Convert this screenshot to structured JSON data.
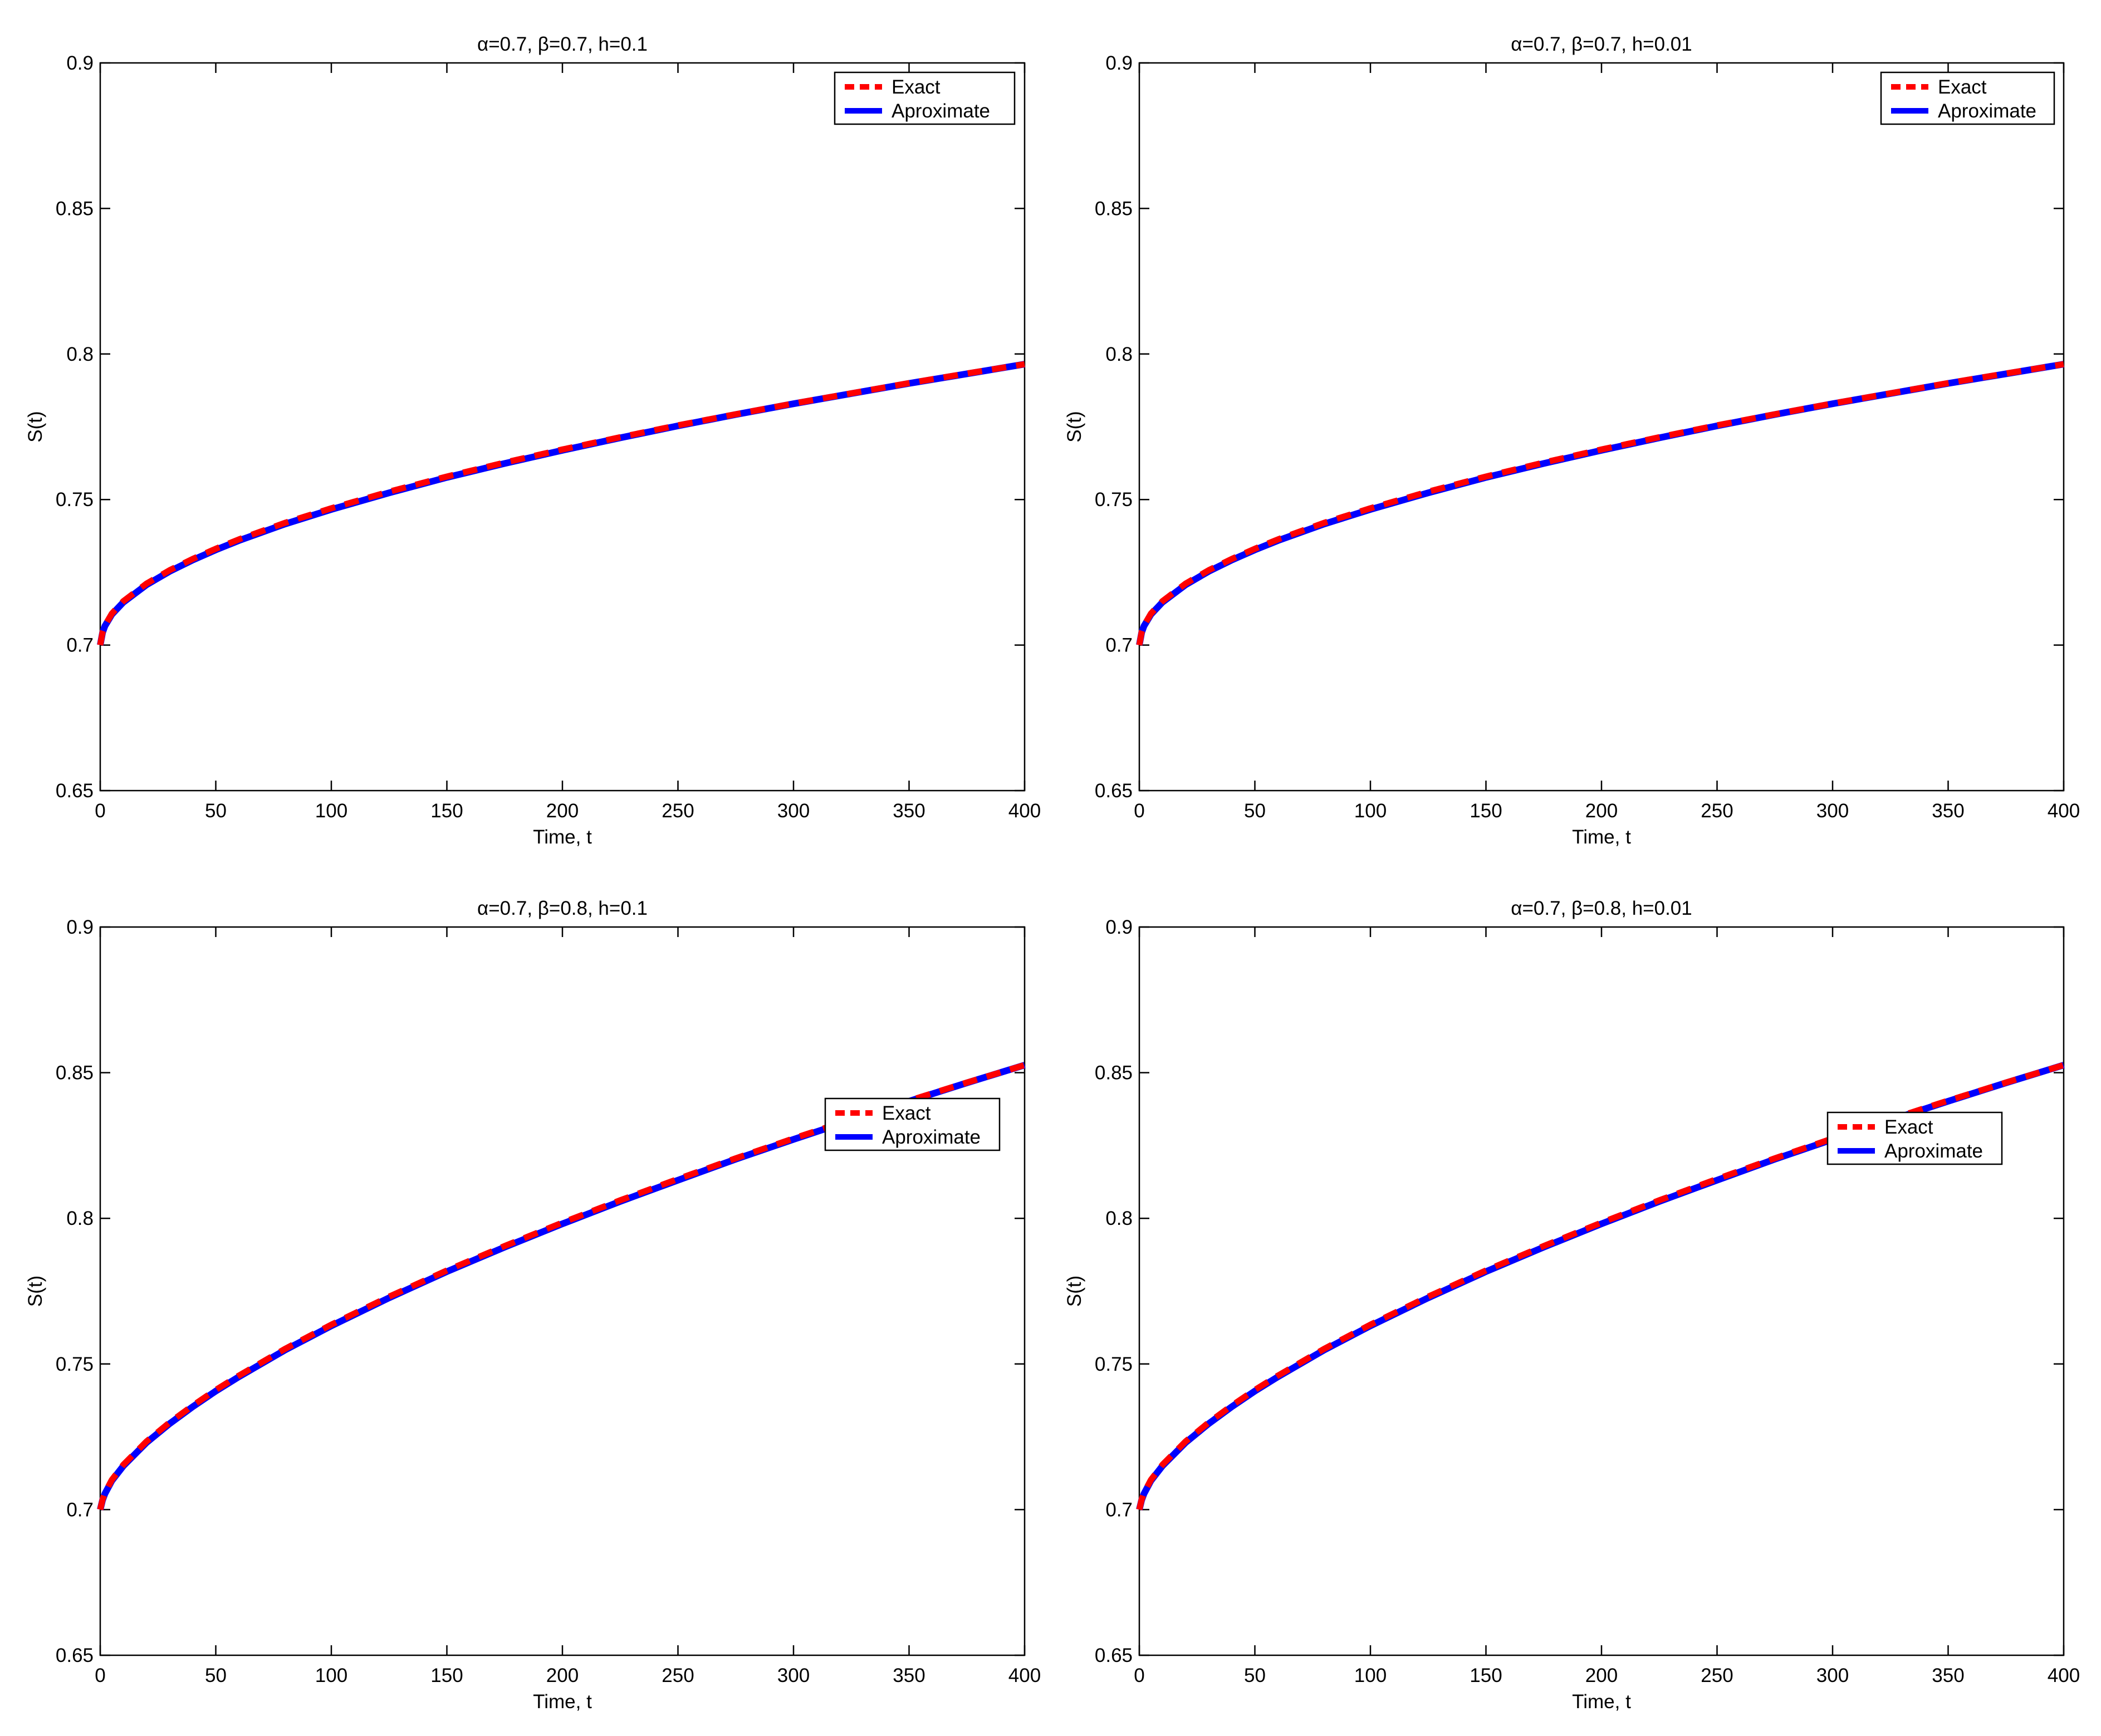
{
  "colors": {
    "exact": "#ff0000",
    "approximate": "#0000ff",
    "axes": "#000000",
    "background": "#ffffff"
  },
  "chart_data": [
    {
      "type": "line",
      "title": "α=0.7, β=0.7, h=0.1",
      "xlabel": "Time, t",
      "ylabel": "S(t)",
      "xlim": [
        0,
        400
      ],
      "ylim": [
        0.65,
        0.9
      ],
      "xticks": [
        "0",
        "50",
        "100",
        "150",
        "200",
        "250",
        "300",
        "350",
        "400"
      ],
      "yticks": [
        "0.65",
        "0.7",
        "0.75",
        "0.8",
        "0.85",
        "0.9"
      ],
      "grid": false,
      "legend_position": "top-right",
      "x": [
        0,
        1,
        2,
        5,
        10,
        20,
        30,
        40,
        50,
        60,
        80,
        100,
        125,
        150,
        175,
        200,
        225,
        250,
        275,
        300,
        325,
        350,
        375,
        400
      ],
      "series": [
        {
          "name": "Exact",
          "style": "dashed",
          "values": [
            0.7,
            0.7045,
            0.7067,
            0.7108,
            0.7151,
            0.7211,
            0.7257,
            0.7296,
            0.7331,
            0.7363,
            0.742,
            0.747,
            0.7527,
            0.7579,
            0.7627,
            0.7672,
            0.7714,
            0.7755,
            0.7793,
            0.783,
            0.7865,
            0.79,
            0.7933,
            0.7965
          ]
        },
        {
          "name": "Aproximate",
          "style": "solid",
          "values": [
            0.7,
            0.7043,
            0.7065,
            0.7105,
            0.7147,
            0.7207,
            0.7253,
            0.7292,
            0.7327,
            0.7359,
            0.7416,
            0.7466,
            0.7523,
            0.7576,
            0.7624,
            0.7669,
            0.7712,
            0.7753,
            0.7792,
            0.7829,
            0.7864,
            0.7899,
            0.7932,
            0.7965
          ]
        }
      ]
    },
    {
      "type": "line",
      "title": "α=0.7, β=0.7, h=0.01",
      "xlabel": "Time, t",
      "ylabel": "S(t)",
      "xlim": [
        0,
        400
      ],
      "ylim": [
        0.65,
        0.9
      ],
      "xticks": [
        "0",
        "50",
        "100",
        "150",
        "200",
        "250",
        "300",
        "350",
        "400"
      ],
      "yticks": [
        "0.65",
        "0.7",
        "0.75",
        "0.8",
        "0.85",
        "0.9"
      ],
      "grid": false,
      "legend_position": "top-right",
      "x": [
        0,
        1,
        2,
        5,
        10,
        20,
        30,
        40,
        50,
        60,
        80,
        100,
        125,
        150,
        175,
        200,
        225,
        250,
        275,
        300,
        325,
        350,
        375,
        400
      ],
      "series": [
        {
          "name": "Exact",
          "style": "dashed",
          "values": [
            0.7,
            0.7045,
            0.7067,
            0.7108,
            0.7151,
            0.7211,
            0.7257,
            0.7296,
            0.7331,
            0.7363,
            0.742,
            0.747,
            0.7527,
            0.7579,
            0.7627,
            0.7672,
            0.7714,
            0.7755,
            0.7793,
            0.783,
            0.7865,
            0.79,
            0.7933,
            0.7965
          ]
        },
        {
          "name": "Aproximate",
          "style": "solid",
          "values": [
            0.7,
            0.7043,
            0.7065,
            0.7105,
            0.7147,
            0.7207,
            0.7253,
            0.7292,
            0.7327,
            0.7359,
            0.7416,
            0.7466,
            0.7523,
            0.7576,
            0.7624,
            0.7669,
            0.7712,
            0.7753,
            0.7792,
            0.7829,
            0.7864,
            0.7899,
            0.7932,
            0.7965
          ]
        }
      ]
    },
    {
      "type": "line",
      "title": "α=0.7, β=0.8, h=0.1",
      "xlabel": "Time, t",
      "ylabel": "S(t)",
      "xlim": [
        0,
        400
      ],
      "ylim": [
        0.65,
        0.9
      ],
      "xticks": [
        "0",
        "50",
        "100",
        "150",
        "200",
        "250",
        "300",
        "350",
        "400"
      ],
      "yticks": [
        "0.65",
        "0.7",
        "0.75",
        "0.8",
        "0.85",
        "0.9"
      ],
      "grid": false,
      "legend_position": "right",
      "x": [
        0,
        1,
        2,
        5,
        10,
        20,
        30,
        40,
        50,
        60,
        80,
        100,
        125,
        150,
        175,
        200,
        225,
        250,
        275,
        300,
        325,
        350,
        375,
        400
      ],
      "series": [
        {
          "name": "Exact",
          "style": "dashed",
          "values": [
            0.7,
            0.7035,
            0.7057,
            0.7102,
            0.7154,
            0.7234,
            0.7299,
            0.7357,
            0.7411,
            0.746,
            0.7552,
            0.7635,
            0.7731,
            0.7821,
            0.7905,
            0.7985,
            0.8062,
            0.8135,
            0.8206,
            0.8274,
            0.834,
            0.8404,
            0.8466,
            0.8526
          ]
        },
        {
          "name": "Aproximate",
          "style": "solid",
          "values": [
            0.7,
            0.7033,
            0.7054,
            0.7099,
            0.715,
            0.723,
            0.7295,
            0.7353,
            0.7407,
            0.7456,
            0.7548,
            0.7631,
            0.7727,
            0.7817,
            0.7901,
            0.7981,
            0.8058,
            0.8131,
            0.8203,
            0.8271,
            0.8337,
            0.8402,
            0.8465,
            0.8526
          ]
        }
      ]
    },
    {
      "type": "line",
      "title": "α=0.7, β=0.8, h=0.01",
      "xlabel": "Time, t",
      "ylabel": "S(t)",
      "xlim": [
        0,
        400
      ],
      "ylim": [
        0.65,
        0.9
      ],
      "xticks": [
        "0",
        "50",
        "100",
        "150",
        "200",
        "250",
        "300",
        "350",
        "400"
      ],
      "yticks": [
        "0.65",
        "0.7",
        "0.75",
        "0.8",
        "0.85",
        "0.9"
      ],
      "grid": false,
      "legend_position": "right",
      "x": [
        0,
        1,
        2,
        5,
        10,
        20,
        30,
        40,
        50,
        60,
        80,
        100,
        125,
        150,
        175,
        200,
        225,
        250,
        275,
        300,
        325,
        350,
        375,
        400
      ],
      "series": [
        {
          "name": "Exact",
          "style": "dashed",
          "values": [
            0.7,
            0.7035,
            0.7057,
            0.7102,
            0.7154,
            0.7234,
            0.7299,
            0.7357,
            0.7411,
            0.746,
            0.7552,
            0.7635,
            0.7731,
            0.7821,
            0.7905,
            0.7985,
            0.8062,
            0.8135,
            0.8206,
            0.8274,
            0.834,
            0.8404,
            0.8466,
            0.8526
          ]
        },
        {
          "name": "Aproximate",
          "style": "solid",
          "values": [
            0.7,
            0.7033,
            0.7054,
            0.7099,
            0.715,
            0.723,
            0.7295,
            0.7353,
            0.7407,
            0.7456,
            0.7548,
            0.7631,
            0.7727,
            0.7817,
            0.7901,
            0.7981,
            0.8058,
            0.8131,
            0.8203,
            0.8271,
            0.8337,
            0.8402,
            0.8465,
            0.8526
          ]
        }
      ]
    }
  ]
}
